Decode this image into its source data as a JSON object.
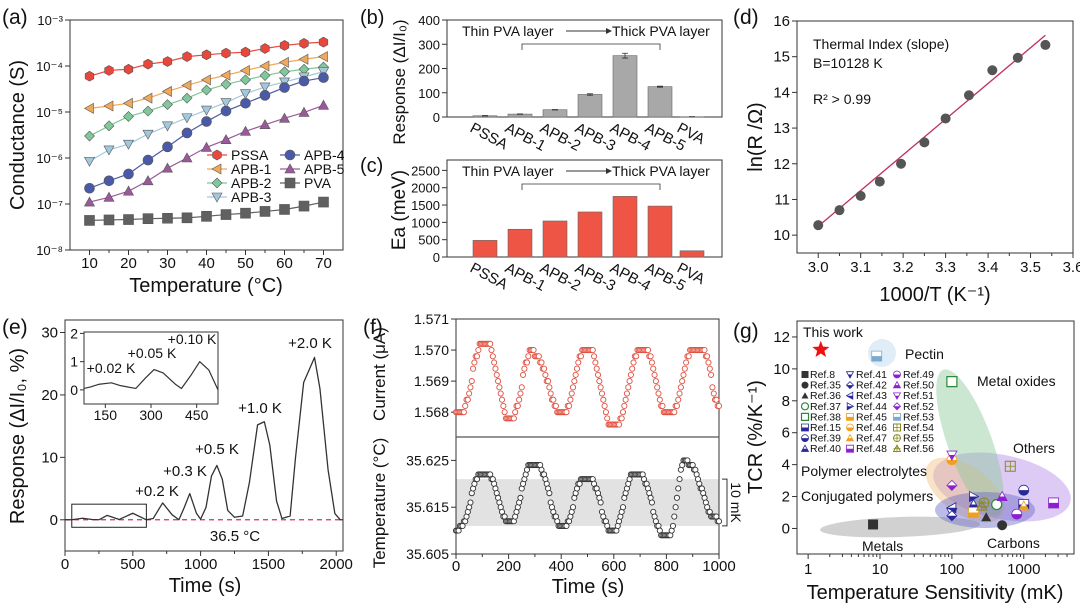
{
  "chart_data": [
    {
      "panel": "(a)",
      "type": "line",
      "xlabel": "Temperature (°C)",
      "ylabel": "Conductance (S)",
      "xlim": [
        5,
        75
      ],
      "ylim": [
        1e-08,
        0.001
      ],
      "yscale": "log",
      "xticks": [
        10,
        20,
        30,
        40,
        50,
        60,
        70
      ],
      "xtick_labels": [
        "10",
        "20",
        "30",
        "40",
        "50",
        "60",
        "70"
      ],
      "yticks": [
        1e-08,
        1e-07,
        1e-06,
        1e-05,
        0.0001,
        0.001
      ],
      "ytick_labels": [
        "10⁻⁸",
        "10⁻⁷",
        "10⁻⁶",
        "10⁻⁵",
        "10⁻⁴",
        "10⁻³"
      ],
      "legend_position": "lower-right",
      "x": [
        10,
        15,
        20,
        25,
        30,
        35,
        40,
        45,
        50,
        55,
        60,
        65,
        70
      ],
      "series": [
        {
          "name": "PSSA",
          "color": "#e8473c",
          "marker": "hexagon",
          "values": [
            6e-05,
            8e-05,
            8.5e-05,
            0.00011,
            0.000125,
            0.00016,
            0.000175,
            0.00019,
            0.0002,
            0.00024,
            0.00028,
            0.00031,
            0.00033
          ]
        },
        {
          "name": "APB-1",
          "color": "#f0a85a",
          "marker": "tri-left",
          "values": [
            1.2e-05,
            1.35e-05,
            1.55e-05,
            2e-05,
            2.8e-05,
            3.8e-05,
            5e-05,
            6.3e-05,
            8e-05,
            0.0001,
            0.00012,
            0.00014,
            0.00016
          ]
        },
        {
          "name": "APB-2",
          "color": "#7ec89a",
          "marker": "diamond",
          "values": [
            3e-06,
            5e-06,
            8e-06,
            1.05e-05,
            1.45e-05,
            2e-05,
            3e-05,
            4e-05,
            5e-05,
            6.2e-05,
            7.5e-05,
            8.5e-05,
            9.5e-05
          ]
        },
        {
          "name": "APB-3",
          "color": "#a2c8de",
          "marker": "tri-down",
          "values": [
            8.5e-07,
            1.5e-06,
            2e-06,
            3.3e-06,
            5e-06,
            7.5e-06,
            1.1e-05,
            1.6e-05,
            2.5e-05,
            3.5e-05,
            4.5e-05,
            5.8e-05,
            7.5e-05
          ]
        },
        {
          "name": "APB-4",
          "color": "#4a5aa8",
          "marker": "circle",
          "values": [
            2.2e-07,
            3.2e-07,
            4.5e-07,
            9e-07,
            1.75e-06,
            3.5e-06,
            6.2e-06,
            1.05e-05,
            1.55e-05,
            2.3e-05,
            3.4e-05,
            4.7e-05,
            5.6e-05
          ]
        },
        {
          "name": "APB-5",
          "color": "#9a5a9a",
          "marker": "triangle",
          "values": [
            1.1e-07,
            1.4e-07,
            1.9e-07,
            3.2e-07,
            6e-07,
            1e-06,
            1.7e-06,
            2.5e-06,
            3.8e-06,
            5.3e-06,
            7.3e-06,
            9.8e-06,
            1.4e-05
          ]
        },
        {
          "name": "PVA",
          "color": "#606060",
          "marker": "square",
          "values": [
            4.4e-08,
            4.5e-08,
            4.6e-08,
            4.8e-08,
            4.9e-08,
            5e-08,
            5.4e-08,
            5.9e-08,
            6.3e-08,
            6.9e-08,
            7.6e-08,
            9e-08,
            1.1e-07
          ]
        }
      ]
    },
    {
      "panel": "(b)",
      "type": "bar",
      "ylabel": "Response (ΔI/I₀)",
      "ylim": [
        0,
        400
      ],
      "yticks": [
        0,
        100,
        200,
        300,
        400
      ],
      "ytick_labels": [
        "0",
        "100",
        "200",
        "300",
        "400"
      ],
      "categories": [
        "PSSA",
        "APB-1",
        "APB-2",
        "APB-3",
        "APB-4",
        "APB-5",
        "PVA"
      ],
      "values": [
        5,
        12,
        30,
        93,
        253,
        125,
        1
      ],
      "errors": [
        1,
        1,
        1,
        3,
        10,
        2,
        0.5
      ],
      "color": "#a8a8a8",
      "annotation_left": "Thin PVA layer",
      "annotation_right": "Thick PVA layer"
    },
    {
      "panel": "(c)",
      "type": "bar",
      "ylabel": "Ea (meV)",
      "ylim": [
        0,
        2800
      ],
      "yticks": [
        0,
        500,
        1000,
        1500,
        2000,
        2500
      ],
      "ytick_labels": [
        "0",
        "500",
        "1000",
        "1500",
        "2000",
        "2500"
      ],
      "categories": [
        "PSSA",
        "APB-1",
        "APB-2",
        "APB-3",
        "APB-4",
        "APB-5",
        "PVA"
      ],
      "values": [
        480,
        800,
        1040,
        1300,
        1750,
        1470,
        180
      ],
      "color": "#ee5545",
      "annotation_left": "Thin PVA layer",
      "annotation_right": "Thick PVA layer"
    },
    {
      "panel": "(d)",
      "type": "scatter",
      "xlabel": "1000/T (K⁻¹)",
      "ylabel": "ln(R /Ω)",
      "xlim": [
        2.95,
        3.6
      ],
      "ylim": [
        9.5,
        16
      ],
      "xticks": [
        3.0,
        3.1,
        3.2,
        3.3,
        3.4,
        3.5,
        3.6
      ],
      "xtick_labels": [
        "3.0",
        "3.1",
        "3.2",
        "3.3",
        "3.4",
        "3.5",
        "3.6"
      ],
      "yticks": [
        10,
        11,
        12,
        13,
        14,
        15,
        16
      ],
      "ytick_labels": [
        "10",
        "11",
        "12",
        "13",
        "14",
        "15",
        "16"
      ],
      "x": [
        3.0,
        3.05,
        3.1,
        3.145,
        3.195,
        3.25,
        3.3,
        3.355,
        3.41,
        3.47,
        3.535
      ],
      "y": [
        10.28,
        10.7,
        11.1,
        11.5,
        12.0,
        12.6,
        13.27,
        13.92,
        14.62,
        14.97,
        15.33
      ],
      "fit_line": {
        "x": [
          3.0,
          3.535
        ],
        "y": [
          10.25,
          15.6
        ],
        "color": "#c03060"
      },
      "point_color": "#555555",
      "annotations": [
        "Thermal Index (slope)",
        "B=10128 K",
        "R² > 0.99"
      ]
    },
    {
      "panel": "(e)",
      "type": "line",
      "xlabel": "Time (s)",
      "ylabel": "Response (ΔI/I₀, %)",
      "xlim": [
        0,
        2050
      ],
      "ylim": [
        -5,
        32
      ],
      "xticks": [
        0,
        500,
        1000,
        1500,
        2000
      ],
      "xtick_labels": [
        "0",
        "500",
        "1000",
        "1500",
        "2000"
      ],
      "yticks": [
        0,
        10,
        20,
        30
      ],
      "ytick_labels": [
        "0",
        "10",
        "20",
        "30"
      ],
      "x": [
        0,
        50,
        130,
        200,
        250,
        310,
        400,
        500,
        600,
        650,
        720,
        790,
        840,
        880,
        920,
        970,
        1000,
        1040,
        1080,
        1120,
        1160,
        1200,
        1250,
        1310,
        1360,
        1420,
        1470,
        1510,
        1560,
        1600,
        1660,
        1700,
        1760,
        1840,
        1880,
        1940,
        1990,
        2030,
        2050
      ],
      "y": [
        0,
        0,
        0.25,
        0.05,
        0,
        0.7,
        0.05,
        1.05,
        0,
        0.2,
        2.7,
        0.8,
        0,
        2,
        4.2,
        1.0,
        0.1,
        2,
        7,
        8.7,
        6.5,
        1.5,
        0.4,
        0.6,
        6,
        15.2,
        15.7,
        12,
        3,
        0.2,
        0.6,
        10,
        22,
        26,
        21,
        8,
        1,
        0,
        0
      ],
      "baseline_label": "36.5 °C",
      "baseline_color": "#d03060",
      "peak_labels": [
        "+0.2 K",
        "+0.3 K",
        "+0.5 K",
        "+1.0 K",
        "+2.0 K"
      ],
      "inset": {
        "xlim": [
          80,
          520
        ],
        "ylim": [
          -0.5,
          2.05
        ],
        "xticks": [
          150,
          300,
          450
        ],
        "xtick_labels": [
          "150",
          "300",
          "450"
        ],
        "yticks": [
          0,
          1,
          2
        ],
        "ytick_labels": [
          "0",
          "1",
          "2"
        ],
        "x": [
          80,
          100,
          130,
          170,
          200,
          250,
          280,
          310,
          340,
          380,
          400,
          430,
          460,
          490,
          520
        ],
        "y": [
          0.05,
          0.1,
          0.2,
          0.25,
          0.15,
          0.05,
          0.4,
          0.72,
          0.6,
          0.2,
          0.05,
          0.5,
          1.0,
          0.7,
          0.0
        ],
        "peak_labels": [
          "+0.02 K",
          "+0.05 K",
          "+0.10 K"
        ]
      }
    },
    {
      "panel": "(f)",
      "type": "scatter",
      "xlabel": "Time (s)",
      "xlim": [
        0,
        1000
      ],
      "xticks": [
        0,
        200,
        400,
        600,
        800,
        1000
      ],
      "xtick_labels": [
        "0",
        "200",
        "400",
        "600",
        "800",
        "1000"
      ],
      "top": {
        "ylabel": "Current (μA)",
        "ylim": [
          1.5672,
          1.571
        ],
        "color": "#e05040",
        "yticks": [
          1.568,
          1.569,
          1.57,
          1.571
        ],
        "ytick_labels": [
          "1.568",
          "1.569",
          "1.570",
          "1.571"
        ],
        "extrema": [
          [
            0,
            1.568
          ],
          [
            20,
            1.568
          ],
          [
            100,
            1.5702
          ],
          [
            120,
            1.5702
          ],
          [
            200,
            1.5678
          ],
          [
            210,
            1.5678
          ],
          [
            290,
            1.57
          ],
          [
            300,
            1.5698
          ],
          [
            400,
            1.568
          ],
          [
            410,
            1.568
          ],
          [
            490,
            1.57
          ],
          [
            510,
            1.57
          ],
          [
            590,
            1.5676
          ],
          [
            610,
            1.5676
          ],
          [
            700,
            1.57
          ],
          [
            720,
            1.57
          ],
          [
            800,
            1.568
          ],
          [
            820,
            1.568
          ],
          [
            900,
            1.57
          ],
          [
            940,
            1.57
          ],
          [
            1000,
            1.5682
          ]
        ]
      },
      "bottom": {
        "ylabel": "Temperature (°C)",
        "ylim": [
          35.605,
          35.63
        ],
        "color": "#333333",
        "yticks": [
          35.605,
          35.615,
          35.625
        ],
        "ytick_labels": [
          "35.605",
          "35.615",
          "35.625"
        ],
        "band": [
          35.611,
          35.621
        ],
        "band_label": "10 mK",
        "extrema": [
          [
            0,
            35.61
          ],
          [
            20,
            35.611
          ],
          [
            90,
            35.622
          ],
          [
            120,
            35.622
          ],
          [
            200,
            35.612
          ],
          [
            215,
            35.612
          ],
          [
            280,
            35.624
          ],
          [
            310,
            35.624
          ],
          [
            400,
            35.611
          ],
          [
            415,
            35.611
          ],
          [
            480,
            35.621
          ],
          [
            510,
            35.621
          ],
          [
            590,
            35.61
          ],
          [
            605,
            35.61
          ],
          [
            670,
            35.622
          ],
          [
            700,
            35.622
          ],
          [
            790,
            35.609
          ],
          [
            810,
            35.609
          ],
          [
            870,
            35.625
          ],
          [
            890,
            35.624
          ],
          [
            980,
            35.613
          ],
          [
            1000,
            35.612
          ]
        ]
      }
    },
    {
      "panel": "(g)",
      "type": "scatter",
      "xlabel": "Temperature Sensitivity (mK)",
      "ylabel": "TCR (%/K⁻¹)",
      "xscale": "log",
      "xlim": [
        0.7,
        5000
      ],
      "ylim": [
        -1.6,
        13
      ],
      "xticks": [
        1,
        10,
        100,
        1000
      ],
      "xtick_labels": [
        "1",
        "10",
        "100",
        "1000"
      ],
      "yticks": [
        0,
        2,
        4,
        6,
        8,
        10,
        12
      ],
      "ytick_labels": [
        "0",
        "2",
        "4",
        "6",
        "8",
        "10",
        "12"
      ],
      "this_work": {
        "label": "This work",
        "x": 1.5,
        "y": 11.2,
        "color": "#ee1111"
      },
      "groups": [
        {
          "name": "Pectin",
          "color": "#8cb8d8"
        },
        {
          "name": "Metal oxides",
          "color": "#2a8a3a"
        },
        {
          "name": "Others",
          "color": "#8a8a20"
        },
        {
          "name": "Polymer electrolytes",
          "color": "#8a30d0"
        },
        {
          "name": "Conjugated polymers",
          "color": "#e0a030"
        },
        {
          "name": "Metals",
          "color": "#444444"
        },
        {
          "name": "Carbons",
          "color": "#28289a"
        }
      ],
      "refs": [
        {
          "label": "Ref.8",
          "shape": "square",
          "color": "#333333",
          "x": 8,
          "y": 0.25
        },
        {
          "label": "Ref.35",
          "shape": "circle",
          "color": "#333333",
          "x": 500,
          "y": 0.2
        },
        {
          "label": "Ref.36",
          "shape": "triangle",
          "color": "#333333",
          "x": 300,
          "y": 0.7
        },
        {
          "label": "Ref.37",
          "shape": "circle-open",
          "color": "#2a8a3a",
          "x": 420,
          "y": 1.5
        },
        {
          "label": "Ref.38",
          "shape": "square-open",
          "color": "#2a8a3a",
          "x": 100,
          "y": 9.2
        },
        {
          "label": "Ref.15",
          "shape": "half-square",
          "color": "#28289a",
          "x": 1000,
          "y": 1.5
        },
        {
          "label": "Ref.39",
          "shape": "half-circle",
          "color": "#28289a",
          "x": 1000,
          "y": 2.4
        },
        {
          "label": "Ref.40",
          "shape": "half-triangle",
          "color": "#28289a",
          "x": 200,
          "y": 1.5
        },
        {
          "label": "Ref.41",
          "shape": "half-tri-down",
          "color": "#28289a",
          "x": 100,
          "y": 1.0
        },
        {
          "label": "Ref.42",
          "shape": "half-diamond",
          "color": "#28289a",
          "x": 100,
          "y": 0.8
        },
        {
          "label": "Ref.43",
          "shape": "half-tri-left",
          "color": "#28289a",
          "x": 100,
          "y": 1.3
        },
        {
          "label": "Ref.44",
          "shape": "half-tri-right",
          "color": "#28289a",
          "x": 200,
          "y": 2.0
        },
        {
          "label": "Ref.45",
          "shape": "half-square",
          "color": "#f0a020",
          "x": 200,
          "y": 1.0
        },
        {
          "label": "Ref.46",
          "shape": "half-circle",
          "color": "#f0a020",
          "x": 100,
          "y": 4.3
        },
        {
          "label": "Ref.47",
          "shape": "half-triangle",
          "color": "#f0a020",
          "x": 1000,
          "y": 1.4
        },
        {
          "label": "Ref.48",
          "shape": "half-square",
          "color": "#8a20d0",
          "x": 2600,
          "y": 1.6
        },
        {
          "label": "Ref.49",
          "shape": "half-circle",
          "color": "#8a20d0",
          "x": 800,
          "y": 0.9
        },
        {
          "label": "Ref.50",
          "shape": "half-triangle",
          "color": "#8a20d0",
          "x": 500,
          "y": 2.0
        },
        {
          "label": "Ref.51",
          "shape": "half-tri-down",
          "color": "#8a20d0",
          "x": 100,
          "y": 4.6
        },
        {
          "label": "Ref.52",
          "shape": "half-diamond",
          "color": "#8a20d0",
          "x": 100,
          "y": 2.7
        },
        {
          "label": "Ref.53",
          "shape": "half-square",
          "color": "#7aaad0",
          "x": 9,
          "y": 10.8
        },
        {
          "label": "Ref.54",
          "shape": "square-plus",
          "color": "#8a8a20",
          "x": 650,
          "y": 3.9
        },
        {
          "label": "Ref.55",
          "shape": "circle-plus",
          "color": "#8a8a20",
          "x": 280,
          "y": 1.6
        },
        {
          "label": "Ref.56",
          "shape": "triangle-plus",
          "color": "#8a8a20",
          "x": 260,
          "y": 1.4
        }
      ]
    }
  ]
}
